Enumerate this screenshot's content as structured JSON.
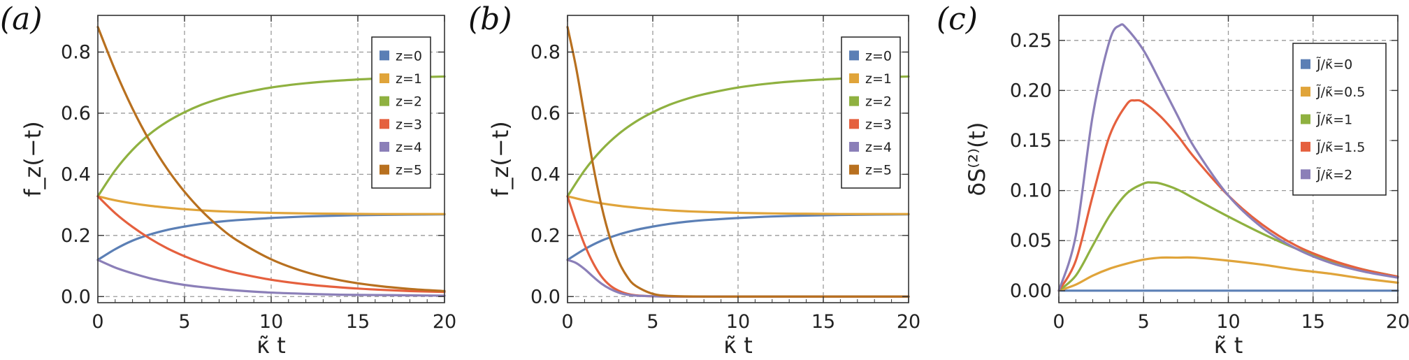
{
  "chart_data": [
    {
      "type": "line",
      "panel": "(a)",
      "xlabel": "κ̃ t",
      "ylabel": "f_z(−t)",
      "xlim": [
        0,
        20
      ],
      "ylim": [
        -0.02,
        0.92
      ],
      "xticks": [
        "0",
        "5",
        "10",
        "15",
        "20"
      ],
      "yticks": [
        "0.0",
        "0.2",
        "0.4",
        "0.6",
        "0.8"
      ],
      "grid": true,
      "legend": "top-right",
      "series": [
        {
          "name": "z=0",
          "color": "#5b7fb5",
          "x": [
            0,
            1,
            2,
            3,
            4,
            5,
            6,
            7,
            8,
            10,
            12,
            14,
            16,
            18,
            20
          ],
          "y": [
            0.12,
            0.155,
            0.183,
            0.203,
            0.218,
            0.229,
            0.238,
            0.245,
            0.25,
            0.257,
            0.262,
            0.265,
            0.267,
            0.268,
            0.269
          ]
        },
        {
          "name": "z=1",
          "color": "#e0a43a",
          "x": [
            0,
            1,
            2,
            3,
            4,
            5,
            6,
            7,
            8,
            10,
            12,
            14,
            16,
            18,
            20
          ],
          "y": [
            0.328,
            0.315,
            0.305,
            0.297,
            0.291,
            0.286,
            0.282,
            0.279,
            0.277,
            0.274,
            0.272,
            0.271,
            0.27,
            0.27,
            0.27
          ]
        },
        {
          "name": "z=2",
          "color": "#8fb140",
          "x": [
            0,
            1,
            2,
            3,
            4,
            5,
            6,
            7,
            8,
            10,
            12,
            14,
            16,
            18,
            20
          ],
          "y": [
            0.328,
            0.413,
            0.48,
            0.532,
            0.572,
            0.603,
            0.628,
            0.647,
            0.662,
            0.684,
            0.698,
            0.707,
            0.713,
            0.717,
            0.72
          ]
        },
        {
          "name": "z=3",
          "color": "#e5603e",
          "x": [
            0,
            1,
            2,
            3,
            4,
            5,
            6,
            7,
            8,
            10,
            12,
            14,
            16,
            18,
            20
          ],
          "y": [
            0.328,
            0.273,
            0.228,
            0.19,
            0.158,
            0.132,
            0.11,
            0.092,
            0.077,
            0.055,
            0.04,
            0.03,
            0.023,
            0.018,
            0.015
          ]
        },
        {
          "name": "z=4",
          "color": "#8b7fb8",
          "x": [
            0,
            1,
            2,
            3,
            4,
            5,
            6,
            7,
            8,
            10,
            12,
            14,
            16,
            18,
            20
          ],
          "y": [
            0.12,
            0.095,
            0.076,
            0.06,
            0.048,
            0.038,
            0.031,
            0.025,
            0.02,
            0.013,
            0.009,
            0.006,
            0.005,
            0.004,
            0.003
          ]
        },
        {
          "name": "z=5",
          "color": "#b8701f",
          "x": [
            0,
            1,
            2,
            3,
            4,
            5,
            6,
            7,
            8,
            10,
            12,
            14,
            16,
            18,
            20
          ],
          "y": [
            0.882,
            0.74,
            0.615,
            0.508,
            0.418,
            0.343,
            0.28,
            0.228,
            0.185,
            0.122,
            0.08,
            0.053,
            0.036,
            0.025,
            0.018
          ]
        }
      ]
    },
    {
      "type": "line",
      "panel": "(b)",
      "xlabel": "κ̃ t",
      "ylabel": "f_z(−t)",
      "xlim": [
        0,
        20
      ],
      "ylim": [
        -0.02,
        0.92
      ],
      "xticks": [
        "0",
        "5",
        "10",
        "15",
        "20"
      ],
      "yticks": [
        "0.0",
        "0.2",
        "0.4",
        "0.6",
        "0.8"
      ],
      "grid": true,
      "legend": "top-right",
      "series": [
        {
          "name": "z=0",
          "color": "#5b7fb5",
          "x": [
            0,
            1,
            2,
            3,
            4,
            5,
            6,
            7,
            8,
            10,
            12,
            14,
            16,
            18,
            20
          ],
          "y": [
            0.12,
            0.155,
            0.183,
            0.203,
            0.218,
            0.229,
            0.238,
            0.245,
            0.25,
            0.257,
            0.262,
            0.265,
            0.267,
            0.268,
            0.269
          ]
        },
        {
          "name": "z=1",
          "color": "#e0a43a",
          "x": [
            0,
            1,
            2,
            3,
            4,
            5,
            6,
            7,
            8,
            10,
            12,
            14,
            16,
            18,
            20
          ],
          "y": [
            0.328,
            0.315,
            0.305,
            0.297,
            0.291,
            0.286,
            0.282,
            0.279,
            0.277,
            0.274,
            0.272,
            0.271,
            0.27,
            0.27,
            0.27
          ]
        },
        {
          "name": "z=2",
          "color": "#8fb140",
          "x": [
            0,
            1,
            2,
            3,
            4,
            5,
            6,
            7,
            8,
            10,
            12,
            14,
            16,
            18,
            20
          ],
          "y": [
            0.328,
            0.413,
            0.48,
            0.532,
            0.572,
            0.603,
            0.628,
            0.647,
            0.662,
            0.684,
            0.698,
            0.707,
            0.713,
            0.717,
            0.72
          ]
        },
        {
          "name": "z=3",
          "color": "#e5603e",
          "x": [
            0,
            0.5,
            1,
            1.5,
            2,
            2.5,
            3,
            3.5,
            4,
            5,
            6,
            8,
            10,
            15,
            20
          ],
          "y": [
            0.328,
            0.245,
            0.17,
            0.11,
            0.065,
            0.036,
            0.019,
            0.009,
            0.004,
            0.001,
            0,
            0,
            0,
            0,
            0
          ]
        },
        {
          "name": "z=4",
          "color": "#8b7fb8",
          "x": [
            0,
            0.5,
            1,
            1.5,
            2,
            2.5,
            3,
            3.5,
            4,
            5,
            6,
            8,
            10,
            15,
            20
          ],
          "y": [
            0.12,
            0.11,
            0.09,
            0.065,
            0.042,
            0.025,
            0.013,
            0.006,
            0.003,
            0.001,
            0,
            0,
            0,
            0,
            0
          ]
        },
        {
          "name": "z=5",
          "color": "#b8701f",
          "x": [
            0,
            0.5,
            1,
            1.5,
            2,
            2.5,
            3,
            3.5,
            4,
            5,
            6,
            8,
            10,
            15,
            20
          ],
          "y": [
            0.882,
            0.75,
            0.59,
            0.43,
            0.295,
            0.19,
            0.115,
            0.065,
            0.035,
            0.009,
            0.002,
            0,
            0,
            0,
            0
          ]
        }
      ]
    },
    {
      "type": "line",
      "panel": "(c)",
      "xlabel": "κ̃ t",
      "ylabel": "δS⁽²⁾(t)",
      "xlim": [
        0,
        20
      ],
      "ylim": [
        -0.012,
        0.275
      ],
      "xticks": [
        "0",
        "5",
        "10",
        "15",
        "20"
      ],
      "yticks": [
        "0.00",
        "0.05",
        "0.10",
        "0.15",
        "0.20",
        "0.25"
      ],
      "grid": true,
      "legend": "top-right",
      "series": [
        {
          "name": "J̃/κ̃=0",
          "color": "#5b7fb5",
          "x": [
            0,
            20
          ],
          "y": [
            0,
            0
          ]
        },
        {
          "name": "J̃/κ̃=0.5",
          "color": "#e0a43a",
          "x": [
            0,
            1,
            2,
            3,
            4,
            5,
            6,
            7,
            8,
            10,
            12,
            14,
            16,
            18,
            20
          ],
          "y": [
            0,
            0.006,
            0.015,
            0.022,
            0.027,
            0.031,
            0.033,
            0.033,
            0.033,
            0.03,
            0.026,
            0.021,
            0.017,
            0.012,
            0.008
          ]
        },
        {
          "name": "J̃/κ̃=1",
          "color": "#8fb140",
          "x": [
            0,
            1,
            2,
            3,
            4,
            5,
            5.5,
            6,
            7,
            8,
            10,
            12,
            14,
            16,
            18,
            20
          ],
          "y": [
            0,
            0.015,
            0.045,
            0.075,
            0.097,
            0.107,
            0.108,
            0.107,
            0.101,
            0.092,
            0.074,
            0.057,
            0.042,
            0.03,
            0.021,
            0.014
          ]
        },
        {
          "name": "J̃/κ̃=1.5",
          "color": "#e5603e",
          "x": [
            0,
            1,
            2,
            3,
            4,
            4.5,
            5,
            6,
            7,
            8,
            10,
            12,
            14,
            16,
            18,
            20
          ],
          "y": [
            0,
            0.03,
            0.095,
            0.155,
            0.186,
            0.19,
            0.188,
            0.174,
            0.155,
            0.133,
            0.095,
            0.066,
            0.045,
            0.031,
            0.021,
            0.014
          ]
        },
        {
          "name": "J̃/κ̃=2",
          "color": "#8b7fb8",
          "x": [
            0,
            1,
            2,
            3,
            3.6,
            4,
            5,
            6,
            7,
            8,
            10,
            12,
            14,
            16,
            18,
            20
          ],
          "y": [
            0,
            0.055,
            0.175,
            0.25,
            0.265,
            0.262,
            0.24,
            0.208,
            0.175,
            0.143,
            0.095,
            0.063,
            0.042,
            0.028,
            0.019,
            0.013
          ]
        }
      ]
    }
  ]
}
